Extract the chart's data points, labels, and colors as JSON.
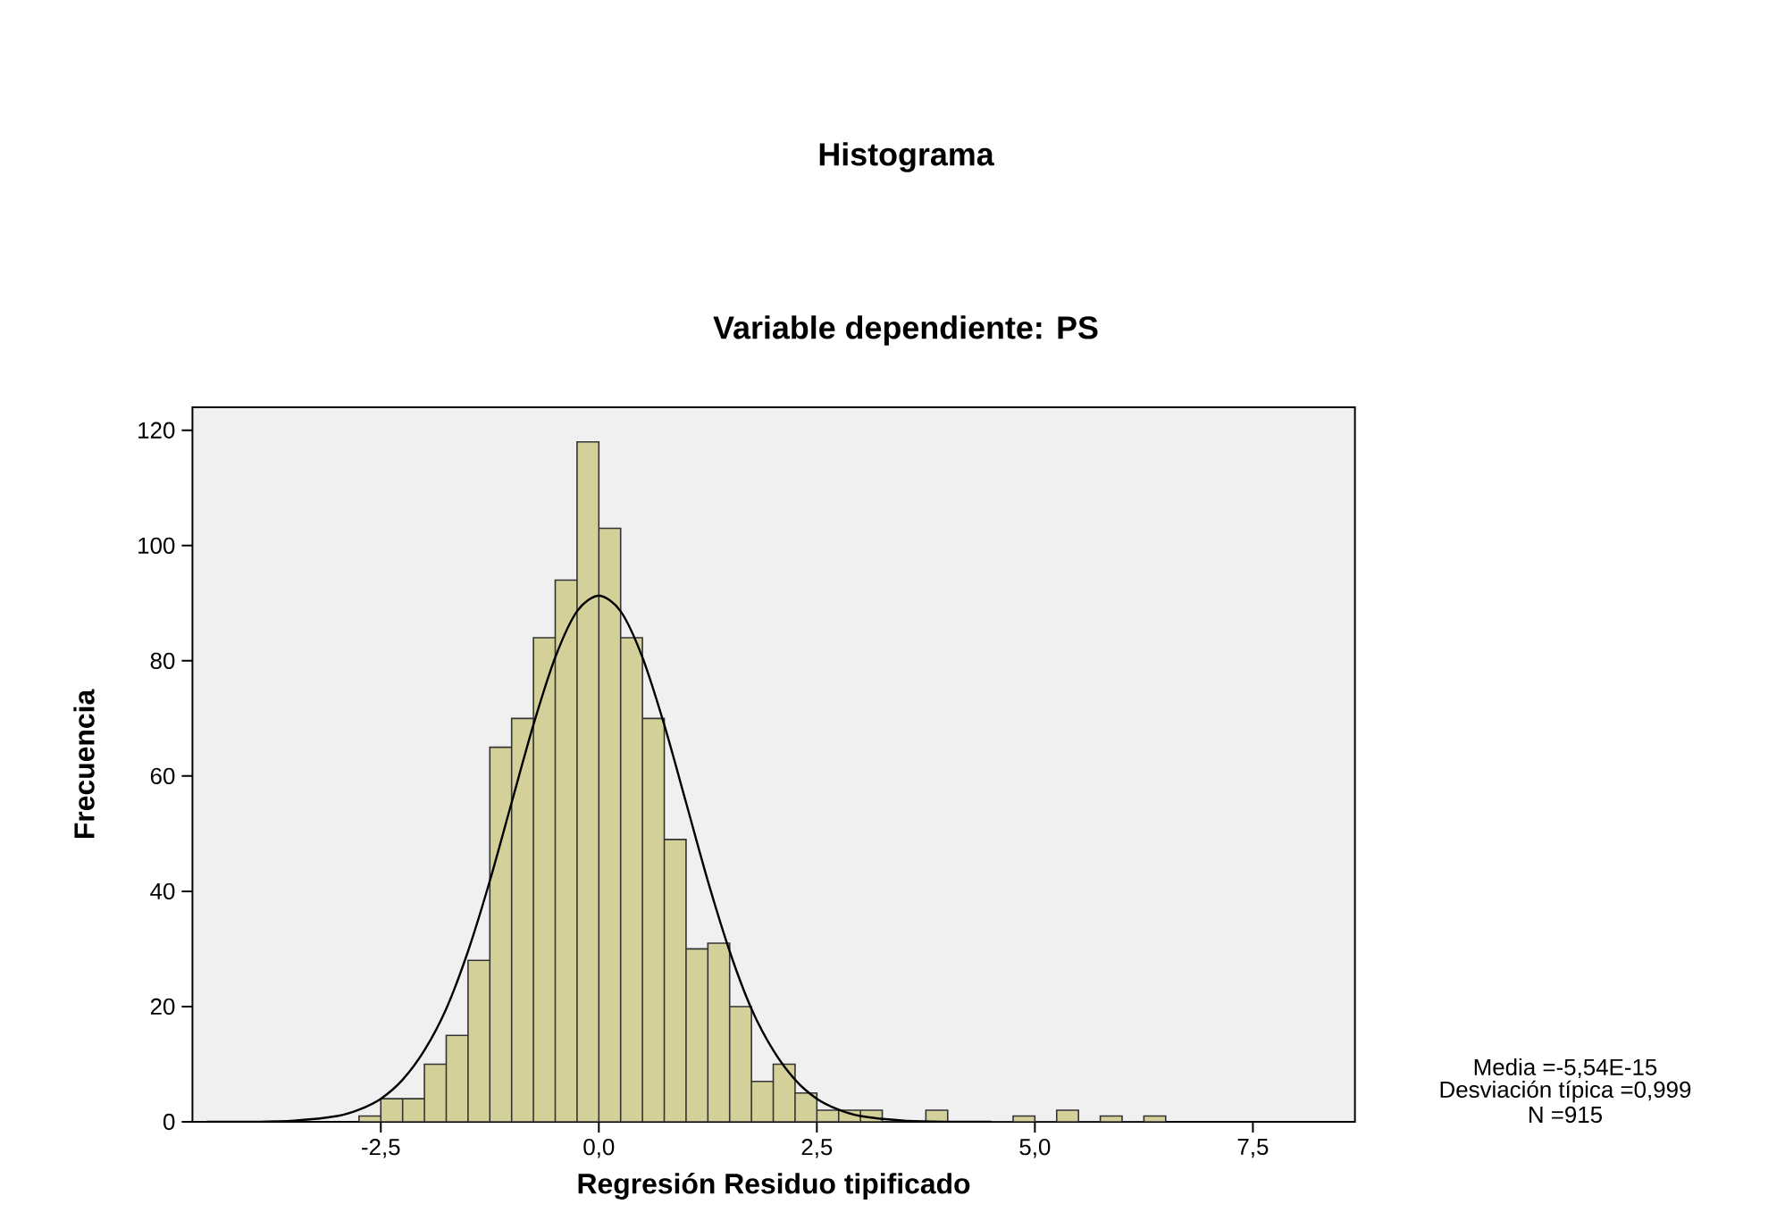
{
  "chart_data": {
    "type": "histogram",
    "title": "Histograma",
    "subtitle": "Variable dependiente: PS",
    "xlabel": "Regresión Residuo tipificado",
    "ylabel": "Frecuencia",
    "bins": [
      -2.75,
      -2.5,
      -2.25,
      -2.0,
      -1.75,
      -1.5,
      -1.25,
      -1.0,
      -0.75,
      -0.5,
      -0.25,
      0.0,
      0.25,
      0.5,
      0.75,
      1.0,
      1.25,
      1.5,
      1.75,
      2.0,
      2.25,
      2.5,
      2.75,
      3.0,
      3.25,
      3.5,
      3.75,
      4.0,
      4.25,
      4.5,
      4.75,
      5.0,
      5.25,
      5.5,
      5.75,
      6.0,
      6.25,
      6.5
    ],
    "values": [
      1,
      4,
      4,
      10,
      15,
      28,
      65,
      70,
      84,
      94,
      118,
      103,
      84,
      70,
      49,
      30,
      31,
      20,
      7,
      10,
      5,
      2,
      2,
      2,
      0,
      0,
      2,
      0,
      0,
      0,
      1,
      0,
      2,
      0,
      1,
      0,
      1
    ],
    "color": "#d4d09a",
    "series": [
      {
        "type": "line",
        "color": "#000000",
        "x": [
          -4.5,
          -4.0,
          -3.5,
          -3.0,
          -2.75,
          -2.5,
          -2.25,
          -2.0,
          -1.75,
          -1.5,
          -1.25,
          -1.0,
          -0.75,
          -0.5,
          -0.25,
          0.0,
          0.25,
          0.5,
          0.75,
          1.0,
          1.25,
          1.5,
          1.75,
          2.0,
          2.25,
          2.5,
          2.75,
          3.0,
          3.5,
          4.0,
          4.5
        ],
        "values": [
          0,
          0,
          0.2,
          1.0,
          2.1,
          4.0,
          7.3,
          12.4,
          19.6,
          29.6,
          41.8,
          55.4,
          68.9,
          80.6,
          88.6,
          91.3,
          88.6,
          80.6,
          68.9,
          55.4,
          41.8,
          29.6,
          19.6,
          12.4,
          7.3,
          4.0,
          2.1,
          1.0,
          0.2,
          0,
          0
        ]
      }
    ],
    "xlim": [
      -4.66,
      8.67
    ],
    "ylim": [
      0,
      124
    ],
    "xticks": [
      {
        "value": -2.5,
        "label": "-2,5"
      },
      {
        "value": 0,
        "label": "0,0"
      },
      {
        "value": 2.5,
        "label": "2,5"
      },
      {
        "value": 5,
        "label": "5,0"
      },
      {
        "value": 7.5,
        "label": "7,5"
      }
    ],
    "yticks": [
      0,
      20,
      40,
      60,
      80,
      100,
      120
    ],
    "annotations": [
      "Media =-5,54E-15",
      "Desviación típica =0,999",
      "N =915"
    ]
  }
}
